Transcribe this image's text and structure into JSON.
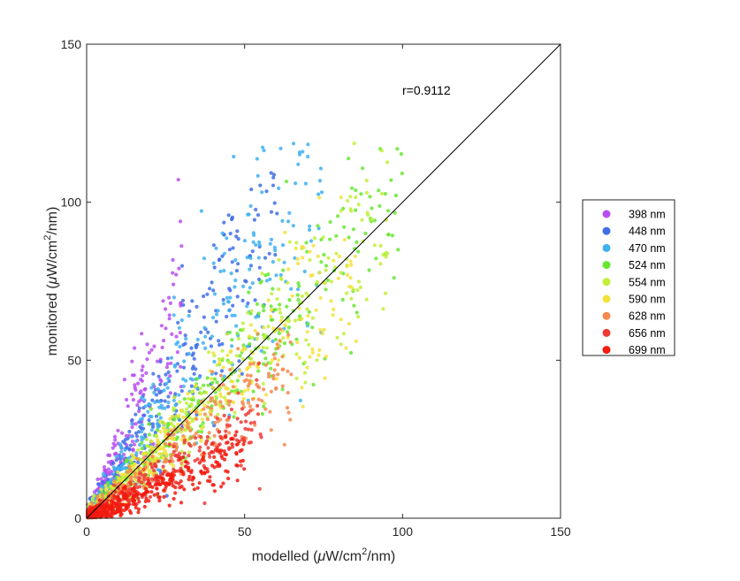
{
  "chart_data": {
    "type": "scatter",
    "xlabel": "modelled (μW/cm²/nm)",
    "ylabel": "monitored (μW/cm²/nm)",
    "xlabel_parts": {
      "pre": "modelled (",
      "mu": "μ",
      "mid": "W/cm",
      "sup": "2",
      "post": "/nm)"
    },
    "ylabel_parts": {
      "pre": "monitored (",
      "mu": "μ",
      "mid": "W/cm",
      "sup": "2",
      "post": "/nm)"
    },
    "xlim": [
      0,
      150
    ],
    "ylim": [
      0,
      150
    ],
    "xticks": [
      0,
      50,
      100,
      150
    ],
    "yticks": [
      0,
      50,
      100,
      150
    ],
    "grid": false,
    "box": true,
    "annotation": {
      "text": "r=0.9112",
      "x": 100,
      "y": 135
    },
    "reference_line": {
      "type": "1:1",
      "from": [
        0,
        0
      ],
      "to": [
        150,
        150
      ],
      "color": "#000000"
    },
    "legend_position": "outside-right",
    "series": [
      {
        "name": "398 nm",
        "color": "#b94df0",
        "count": 260,
        "xmax": 30,
        "slope": 2.15,
        "spread": 0.28
      },
      {
        "name": "448 nm",
        "color": "#3f6ee8",
        "count": 330,
        "xmax": 60,
        "slope": 1.55,
        "spread": 0.22
      },
      {
        "name": "470 nm",
        "color": "#3fb0f0",
        "count": 360,
        "xmax": 75,
        "slope": 1.5,
        "spread": 0.24
      },
      {
        "name": "524 nm",
        "color": "#66e830",
        "count": 380,
        "xmax": 100,
        "slope": 1.0,
        "spread": 0.18
      },
      {
        "name": "554 nm",
        "color": "#c2ef39",
        "count": 360,
        "xmax": 95,
        "slope": 0.98,
        "spread": 0.18
      },
      {
        "name": "590 nm",
        "color": "#f4e23b",
        "count": 320,
        "xmax": 85,
        "slope": 0.95,
        "spread": 0.18
      },
      {
        "name": "628 nm",
        "color": "#f58a50",
        "count": 300,
        "xmax": 65,
        "slope": 0.78,
        "spread": 0.2
      },
      {
        "name": "656 nm",
        "color": "#ee3a35",
        "count": 330,
        "xmax": 55,
        "slope": 0.6,
        "spread": 0.2
      },
      {
        "name": "699 nm",
        "color": "#f21a0f",
        "count": 380,
        "xmax": 50,
        "slope": 0.42,
        "spread": 0.22
      }
    ]
  }
}
